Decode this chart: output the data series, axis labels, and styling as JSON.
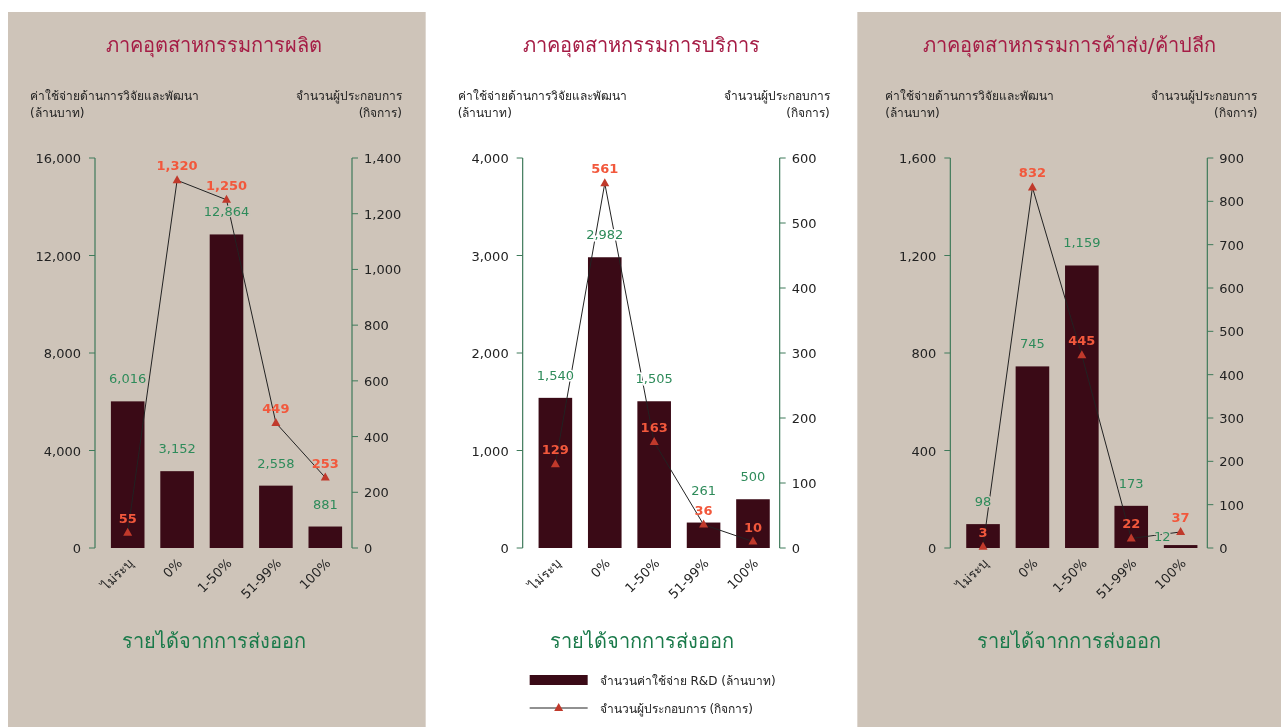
{
  "chart_data": [
    {
      "type": "bar",
      "title": "ภาคอุตสาหกรรมการผลิต",
      "xlabel": "รายได้จากการส่งออก",
      "ylabel": "ค่าใช้จ่ายด้านการวิจัยและพัฒนา (ล้านบาท)",
      "y2label": "จำนวนผู้ประกอบการ (กิจการ)",
      "categories": [
        "ไม่ระบุ",
        "0%",
        "1-50%",
        "51-99%",
        "100%"
      ],
      "ylim": [
        0,
        16000
      ],
      "yticks": [
        0,
        {
          "value": 4000,
          "label": "4,000"
        },
        {
          "value": 8000,
          "label": "8,000"
        },
        {
          "value": 12000,
          "label": "12,000"
        },
        {
          "value": 16000,
          "label": "16,000"
        }
      ],
      "y2lim": [
        0,
        1400
      ],
      "y2ticks": [
        0,
        200,
        400,
        600,
        800,
        {
          "value": 1000,
          "label": "1,000"
        },
        {
          "value": 1200,
          "label": "1,200"
        },
        {
          "value": 1400,
          "label": "1,400"
        }
      ],
      "marker": "triangle",
      "legend": false,
      "series": [
        {
          "color": "#3a0a16",
          "values": [
            6016,
            3152,
            12864,
            2558,
            881
          ],
          "value_labels": [
            "6,016",
            "3,152",
            "12,864",
            "2,558",
            "881"
          ]
        },
        {
          "type": "line",
          "axis": "y2",
          "color": "#222222",
          "values": [
            55,
            1320,
            1250,
            449,
            253
          ],
          "value_labels": [
            "55",
            "1,320",
            "1,250",
            "449",
            "253"
          ]
        }
      ]
    },
    {
      "type": "bar",
      "title": "ภาคอุตสาหกรรมการบริการ",
      "xlabel": "รายได้จากการส่งออก",
      "ylabel": "ค่าใช้จ่ายด้านการวิจัยและพัฒนา (ล้านบาท)",
      "y2label": "จำนวนผู้ประกอบการ (กิจการ)",
      "categories": [
        "ไม่ระบุ",
        "0%",
        "1-50%",
        "51-99%",
        "100%"
      ],
      "ylim": [
        0,
        4000
      ],
      "yticks": [
        0,
        {
          "value": 1000,
          "label": "1,000"
        },
        {
          "value": 2000,
          "label": "2,000"
        },
        {
          "value": 3000,
          "label": "3,000"
        },
        {
          "value": 4000,
          "label": "4,000"
        }
      ],
      "y2lim": [
        0,
        600
      ],
      "y2ticks": [
        0,
        100,
        200,
        300,
        400,
        500,
        600
      ],
      "marker": "triangle",
      "legend": "bottom",
      "series": [
        {
          "name": "จำนวนค่าใช้จ่าย R&D (ล้านบาท)",
          "color": "#3a0a16",
          "values": [
            1540,
            2982,
            1505,
            261,
            500
          ],
          "value_labels": [
            "1,540",
            "2,982",
            "1,505",
            "261",
            "500"
          ]
        },
        {
          "type": "line",
          "name": "จำนวนผู้ประกอบการ (กิจการ)",
          "axis": "y2",
          "color": "#222222",
          "values": [
            129,
            561,
            163,
            36,
            10
          ],
          "value_labels": [
            "129",
            "561",
            "163",
            "36",
            "10"
          ]
        }
      ]
    },
    {
      "type": "bar",
      "title": "ภาคอุตสาหกรรมการค้าส่ง/ค้าปลีก",
      "xlabel": "รายได้จากการส่งออก",
      "ylabel": "ค่าใช้จ่ายด้านการวิจัยและพัฒนา (ล้านบาท)",
      "y2label": "จำนวนผู้ประกอบการ (กิจการ)",
      "categories": [
        "ไม่ระบุ",
        "0%",
        "1-50%",
        "51-99%",
        "100%"
      ],
      "ylim": [
        0,
        1600
      ],
      "yticks": [
        0,
        400,
        800,
        {
          "value": 1200,
          "label": "1,200"
        },
        {
          "value": 1600,
          "label": "1,600"
        }
      ],
      "y2lim": [
        0,
        900
      ],
      "y2ticks": [
        0,
        100,
        200,
        300,
        400,
        500,
        600,
        700,
        800,
        900
      ],
      "marker": "triangle",
      "legend": false,
      "series": [
        {
          "color": "#3a0a16",
          "values": [
            98,
            745,
            1159,
            173,
            12
          ],
          "value_labels": [
            "98",
            "745",
            "1,159",
            "173",
            "12"
          ]
        },
        {
          "type": "line",
          "axis": "y2",
          "color": "#222222",
          "values": [
            3,
            832,
            445,
            22,
            37
          ],
          "value_labels": [
            "3",
            "832",
            "445",
            "22",
            "37"
          ]
        }
      ]
    }
  ]
}
